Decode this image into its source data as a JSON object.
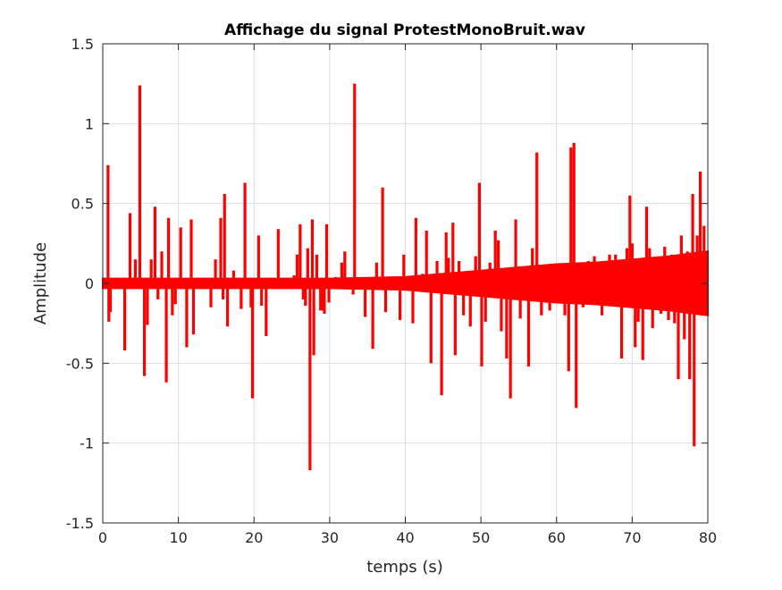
{
  "chart_data": {
    "type": "line",
    "title": "Affichage du signal ProtestMonoBruit.wav",
    "xlabel": "temps (s)",
    "ylabel": "Amplitude",
    "xlim": [
      0,
      80
    ],
    "ylim": [
      -1.5,
      1.5
    ],
    "xticks": [
      0,
      10,
      20,
      30,
      40,
      50,
      60,
      70,
      80
    ],
    "yticks": [
      -1.5,
      -1,
      -0.5,
      0,
      0.5,
      1,
      1.5
    ],
    "xtick_labels": [
      "0",
      "10",
      "20",
      "30",
      "40",
      "50",
      "60",
      "70",
      "80"
    ],
    "ytick_labels": [
      "-1.5",
      "-1",
      "-0.5",
      "0",
      "0.5",
      "1",
      "1.5"
    ],
    "grid": true,
    "line_color": "#ff0000",
    "noise_envelope": {
      "x": [
        0,
        10,
        20,
        30,
        40,
        45,
        50,
        55,
        60,
        65,
        70,
        75,
        80
      ],
      "upper": [
        0.03,
        0.03,
        0.03,
        0.03,
        0.04,
        0.06,
        0.08,
        0.1,
        0.12,
        0.13,
        0.15,
        0.17,
        0.2
      ],
      "lower": [
        -0.03,
        -0.03,
        -0.03,
        -0.03,
        -0.04,
        -0.06,
        -0.08,
        -0.1,
        -0.12,
        -0.13,
        -0.15,
        -0.17,
        -0.2
      ]
    },
    "spikes": [
      {
        "x": 0.7,
        "y": 0.74
      },
      {
        "x": 0.8,
        "y": -0.24
      },
      {
        "x": 1.0,
        "y": -0.18
      },
      {
        "x": 2.0,
        "y": 0.03
      },
      {
        "x": 2.9,
        "y": -0.42
      },
      {
        "x": 3.6,
        "y": 0.44
      },
      {
        "x": 4.0,
        "y": 0.03
      },
      {
        "x": 4.3,
        "y": 0.15
      },
      {
        "x": 4.9,
        "y": 1.24
      },
      {
        "x": 5.5,
        "y": -0.58
      },
      {
        "x": 5.9,
        "y": -0.26
      },
      {
        "x": 6.4,
        "y": 0.15
      },
      {
        "x": 6.9,
        "y": 0.48
      },
      {
        "x": 7.3,
        "y": -0.1
      },
      {
        "x": 7.8,
        "y": 0.2
      },
      {
        "x": 8.4,
        "y": -0.62
      },
      {
        "x": 8.7,
        "y": 0.41
      },
      {
        "x": 9.2,
        "y": -0.2
      },
      {
        "x": 9.6,
        "y": -0.13
      },
      {
        "x": 10.3,
        "y": 0.35
      },
      {
        "x": 11.1,
        "y": -0.4
      },
      {
        "x": 11.7,
        "y": 0.4
      },
      {
        "x": 12.0,
        "y": -0.32
      },
      {
        "x": 14.3,
        "y": -0.15
      },
      {
        "x": 14.9,
        "y": 0.15
      },
      {
        "x": 15.6,
        "y": 0.41
      },
      {
        "x": 15.9,
        "y": -0.1
      },
      {
        "x": 16.1,
        "y": 0.56
      },
      {
        "x": 16.5,
        "y": -0.27
      },
      {
        "x": 17.3,
        "y": 0.08
      },
      {
        "x": 18.3,
        "y": -0.16
      },
      {
        "x": 18.8,
        "y": 0.63
      },
      {
        "x": 19.6,
        "y": -0.15
      },
      {
        "x": 19.8,
        "y": -0.72
      },
      {
        "x": 20.6,
        "y": 0.3
      },
      {
        "x": 21.0,
        "y": -0.14
      },
      {
        "x": 21.6,
        "y": -0.33
      },
      {
        "x": 23.2,
        "y": 0.34
      },
      {
        "x": 24.3,
        "y": -0.03
      },
      {
        "x": 25.3,
        "y": 0.05
      },
      {
        "x": 25.7,
        "y": 0.18
      },
      {
        "x": 26.1,
        "y": 0.37
      },
      {
        "x": 26.5,
        "y": -0.1
      },
      {
        "x": 26.8,
        "y": -0.14
      },
      {
        "x": 27.1,
        "y": 0.22
      },
      {
        "x": 27.4,
        "y": -1.17
      },
      {
        "x": 27.7,
        "y": 0.4
      },
      {
        "x": 27.9,
        "y": -0.45
      },
      {
        "x": 28.3,
        "y": 0.18
      },
      {
        "x": 28.8,
        "y": -0.17
      },
      {
        "x": 29.1,
        "y": -0.17
      },
      {
        "x": 29.3,
        "y": -0.19
      },
      {
        "x": 29.6,
        "y": 0.37
      },
      {
        "x": 29.9,
        "y": -0.12
      },
      {
        "x": 30.8,
        "y": 0.04
      },
      {
        "x": 31.6,
        "y": 0.13
      },
      {
        "x": 32.0,
        "y": 0.2
      },
      {
        "x": 33.1,
        "y": -0.07
      },
      {
        "x": 33.3,
        "y": 1.25
      },
      {
        "x": 34.7,
        "y": -0.21
      },
      {
        "x": 35.7,
        "y": -0.41
      },
      {
        "x": 36.2,
        "y": 0.13
      },
      {
        "x": 37.0,
        "y": 0.6
      },
      {
        "x": 37.4,
        "y": -0.18
      },
      {
        "x": 39.3,
        "y": -0.23
      },
      {
        "x": 39.8,
        "y": 0.18
      },
      {
        "x": 41.0,
        "y": -0.25
      },
      {
        "x": 41.4,
        "y": 0.41
      },
      {
        "x": 42.3,
        "y": 0.06
      },
      {
        "x": 42.8,
        "y": 0.33
      },
      {
        "x": 43.4,
        "y": -0.5
      },
      {
        "x": 44.2,
        "y": 0.14
      },
      {
        "x": 44.8,
        "y": -0.7
      },
      {
        "x": 45.4,
        "y": 0.32
      },
      {
        "x": 45.7,
        "y": 0.16
      },
      {
        "x": 46.3,
        "y": 0.38
      },
      {
        "x": 46.6,
        "y": -0.45
      },
      {
        "x": 47.1,
        "y": 0.14
      },
      {
        "x": 47.7,
        "y": -0.2
      },
      {
        "x": 48.6,
        "y": -0.27
      },
      {
        "x": 49.3,
        "y": 0.17
      },
      {
        "x": 49.8,
        "y": 0.63
      },
      {
        "x": 50.1,
        "y": -0.52
      },
      {
        "x": 50.6,
        "y": -0.24
      },
      {
        "x": 51.2,
        "y": 0.13
      },
      {
        "x": 51.9,
        "y": 0.33
      },
      {
        "x": 52.3,
        "y": 0.27
      },
      {
        "x": 52.7,
        "y": -0.3
      },
      {
        "x": 53.4,
        "y": -0.47
      },
      {
        "x": 53.9,
        "y": -0.72
      },
      {
        "x": 54.6,
        "y": 0.4
      },
      {
        "x": 55.2,
        "y": -0.22
      },
      {
        "x": 56.3,
        "y": -0.52
      },
      {
        "x": 56.8,
        "y": 0.22
      },
      {
        "x": 57.4,
        "y": 0.82
      },
      {
        "x": 58.0,
        "y": -0.2
      },
      {
        "x": 58.6,
        "y": 0.12
      },
      {
        "x": 59.1,
        "y": -0.17
      },
      {
        "x": 59.7,
        "y": -0.11
      },
      {
        "x": 60.5,
        "y": -0.12
      },
      {
        "x": 61.1,
        "y": -0.2
      },
      {
        "x": 61.6,
        "y": -0.55
      },
      {
        "x": 61.9,
        "y": 0.85
      },
      {
        "x": 62.3,
        "y": 0.88
      },
      {
        "x": 62.6,
        "y": -0.78
      },
      {
        "x": 63.5,
        "y": -0.15
      },
      {
        "x": 64.2,
        "y": 0.14
      },
      {
        "x": 65.0,
        "y": 0.17
      },
      {
        "x": 66.0,
        "y": -0.2
      },
      {
        "x": 67.0,
        "y": 0.18
      },
      {
        "x": 67.8,
        "y": 0.18
      },
      {
        "x": 68.6,
        "y": -0.47
      },
      {
        "x": 69.3,
        "y": 0.22
      },
      {
        "x": 69.7,
        "y": 0.55
      },
      {
        "x": 70.0,
        "y": 0.25
      },
      {
        "x": 70.4,
        "y": -0.4
      },
      {
        "x": 70.8,
        "y": -0.24
      },
      {
        "x": 71.4,
        "y": -0.48
      },
      {
        "x": 71.9,
        "y": 0.48
      },
      {
        "x": 72.3,
        "y": 0.22
      },
      {
        "x": 72.7,
        "y": -0.28
      },
      {
        "x": 73.3,
        "y": 0.16
      },
      {
        "x": 73.8,
        "y": -0.19
      },
      {
        "x": 74.3,
        "y": 0.23
      },
      {
        "x": 74.8,
        "y": -0.23
      },
      {
        "x": 75.2,
        "y": 0.18
      },
      {
        "x": 75.6,
        "y": -0.25
      },
      {
        "x": 76.1,
        "y": -0.6
      },
      {
        "x": 76.5,
        "y": 0.3
      },
      {
        "x": 76.9,
        "y": -0.35
      },
      {
        "x": 77.3,
        "y": 0.2
      },
      {
        "x": 77.6,
        "y": -0.6
      },
      {
        "x": 78.0,
        "y": 0.56
      },
      {
        "x": 78.2,
        "y": -1.02
      },
      {
        "x": 78.6,
        "y": 0.3
      },
      {
        "x": 79.0,
        "y": 0.7
      },
      {
        "x": 79.2,
        "y": -0.2
      },
      {
        "x": 79.5,
        "y": 0.36
      },
      {
        "x": 79.8,
        "y": -0.2
      }
    ]
  }
}
